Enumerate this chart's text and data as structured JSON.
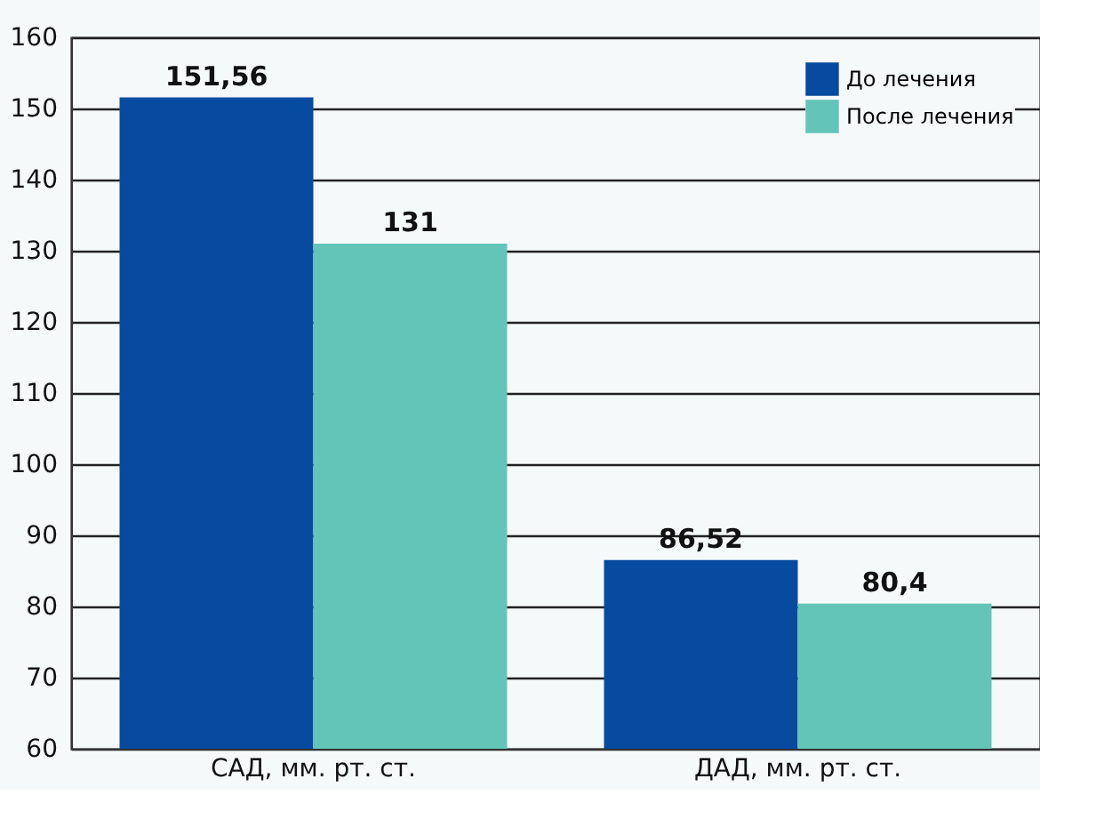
{
  "chart_data": {
    "type": "bar",
    "categories": [
      "САД, мм. рт. ст.",
      "ДАД, мм. рт. ст."
    ],
    "series": [
      {
        "name": "До лечения",
        "color": "#064ba0",
        "values": [
          151.56,
          86.52
        ],
        "value_labels": [
          "151,56",
          "86,52"
        ]
      },
      {
        "name": "После лечения",
        "color": "#63c5b8",
        "values": [
          131,
          80.4
        ],
        "value_labels": [
          "131",
          "80,4"
        ]
      }
    ],
    "ylim": [
      60,
      160
    ],
    "yticks": [
      60,
      70,
      80,
      90,
      100,
      110,
      120,
      130,
      140,
      150,
      160
    ],
    "grid": "y",
    "legend": "top right"
  }
}
